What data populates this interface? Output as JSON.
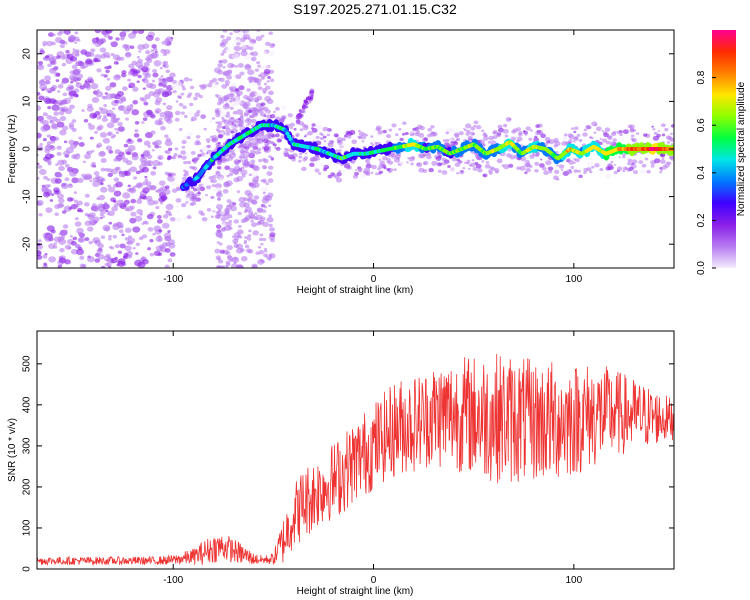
{
  "figure_title": "S197.2025.271.01.15.C32",
  "chart_data": [
    {
      "type": "heatmap",
      "title": "S197.2025.271.01.15.C32",
      "xlabel": "Height of straight line (km)",
      "ylabel": "Frequency (Hz)",
      "xlim": [
        -168,
        150
      ],
      "ylim": [
        -25,
        25
      ],
      "x_ticks": [
        -100,
        0,
        100
      ],
      "x_tick_labels": [
        "-100",
        "0",
        "100"
      ],
      "y_ticks": [
        -20,
        -10,
        0,
        10,
        20
      ],
      "y_tick_labels": [
        "-20",
        "-10",
        "0",
        "10",
        "20"
      ],
      "ridge": {
        "x": [
          -95,
          -88,
          -80,
          -72,
          -64,
          -56,
          -50,
          -44,
          -40,
          -34,
          -28,
          -22,
          -16,
          -10,
          -4,
          2,
          8,
          14,
          20,
          26,
          32,
          38,
          44,
          50,
          56,
          62,
          68,
          74,
          80,
          86,
          92,
          98,
          104,
          110,
          116,
          122,
          128,
          134,
          140,
          146,
          150
        ],
        "y": [
          -8,
          -6,
          -2,
          1,
          3,
          5,
          5,
          4,
          1,
          0.5,
          0,
          -1,
          -2,
          -1,
          -1,
          -0.5,
          0,
          0.5,
          1,
          0,
          0.5,
          -1,
          0,
          1,
          -1,
          0,
          1.5,
          -1,
          0.5,
          0,
          -2,
          0,
          -1,
          0.5,
          -1,
          0,
          0,
          0,
          0,
          0,
          0
        ],
        "amplitude": [
          0.3,
          0.35,
          0.45,
          0.5,
          0.5,
          0.5,
          0.45,
          0.45,
          0.45,
          0.45,
          0.45,
          0.45,
          0.55,
          0.5,
          0.5,
          0.5,
          0.55,
          0.6,
          0.75,
          0.55,
          0.6,
          0.55,
          0.6,
          0.65,
          0.6,
          0.65,
          0.7,
          0.6,
          0.7,
          0.6,
          0.6,
          0.75,
          0.65,
          0.7,
          0.75,
          0.8,
          0.85,
          0.85,
          0.95,
          0.9,
          0.85
        ]
      },
      "colorbar": {
        "label": "Normalized spectral amplitude",
        "range": [
          0.0,
          1.0
        ],
        "ticks": [
          0.0,
          0.2,
          0.4,
          0.6,
          0.8
        ],
        "tick_labels": [
          "0.0",
          "0.2",
          "0.4",
          "0.6",
          "0.8"
        ],
        "colors": [
          "#f4ecfd",
          "#b77af0",
          "#8a1fe8",
          "#4000ff",
          "#0077ff",
          "#00e6e6",
          "#00ff40",
          "#8cff00",
          "#ffe600",
          "#ff8000",
          "#ff2a00",
          "#ff0090"
        ]
      }
    },
    {
      "type": "line",
      "xlabel": "Height of straight line (km)",
      "ylabel": "SNR (10 * v/v)",
      "xlim": [
        -168,
        150
      ],
      "ylim": [
        0,
        580
      ],
      "x_ticks": [
        -100,
        0,
        100
      ],
      "x_tick_labels": [
        "-100",
        "0",
        "100"
      ],
      "y_ticks": [
        0,
        100,
        200,
        300,
        400,
        500
      ],
      "y_tick_labels": [
        "0",
        "100",
        "200",
        "300",
        "400",
        "500"
      ],
      "series": [
        {
          "name": "SNR",
          "color": "#ee3333",
          "x": [
            -168,
            -150,
            -130,
            -110,
            -100,
            -90,
            -85,
            -80,
            -75,
            -70,
            -65,
            -60,
            -55,
            -50,
            -45,
            -40,
            -35,
            -30,
            -25,
            -20,
            -15,
            -10,
            -5,
            0,
            5,
            10,
            15,
            20,
            25,
            30,
            40,
            50,
            60,
            70,
            80,
            90,
            100,
            110,
            120,
            130,
            140,
            150
          ],
          "y": [
            20,
            20,
            20,
            20,
            22,
            30,
            40,
            50,
            55,
            45,
            35,
            25,
            22,
            25,
            70,
            130,
            160,
            180,
            200,
            215,
            235,
            260,
            280,
            300,
            320,
            340,
            350,
            355,
            365,
            375,
            380,
            375,
            370,
            365,
            360,
            360,
            365,
            375,
            380,
            375,
            370,
            365
          ],
          "spread": [
            10,
            10,
            10,
            10,
            12,
            20,
            30,
            35,
            35,
            30,
            25,
            15,
            10,
            15,
            60,
            80,
            90,
            90,
            90,
            95,
            100,
            100,
            105,
            110,
            110,
            120,
            120,
            120,
            120,
            130,
            140,
            150,
            160,
            160,
            150,
            150,
            140,
            130,
            110,
            90,
            70,
            50
          ]
        }
      ]
    }
  ]
}
